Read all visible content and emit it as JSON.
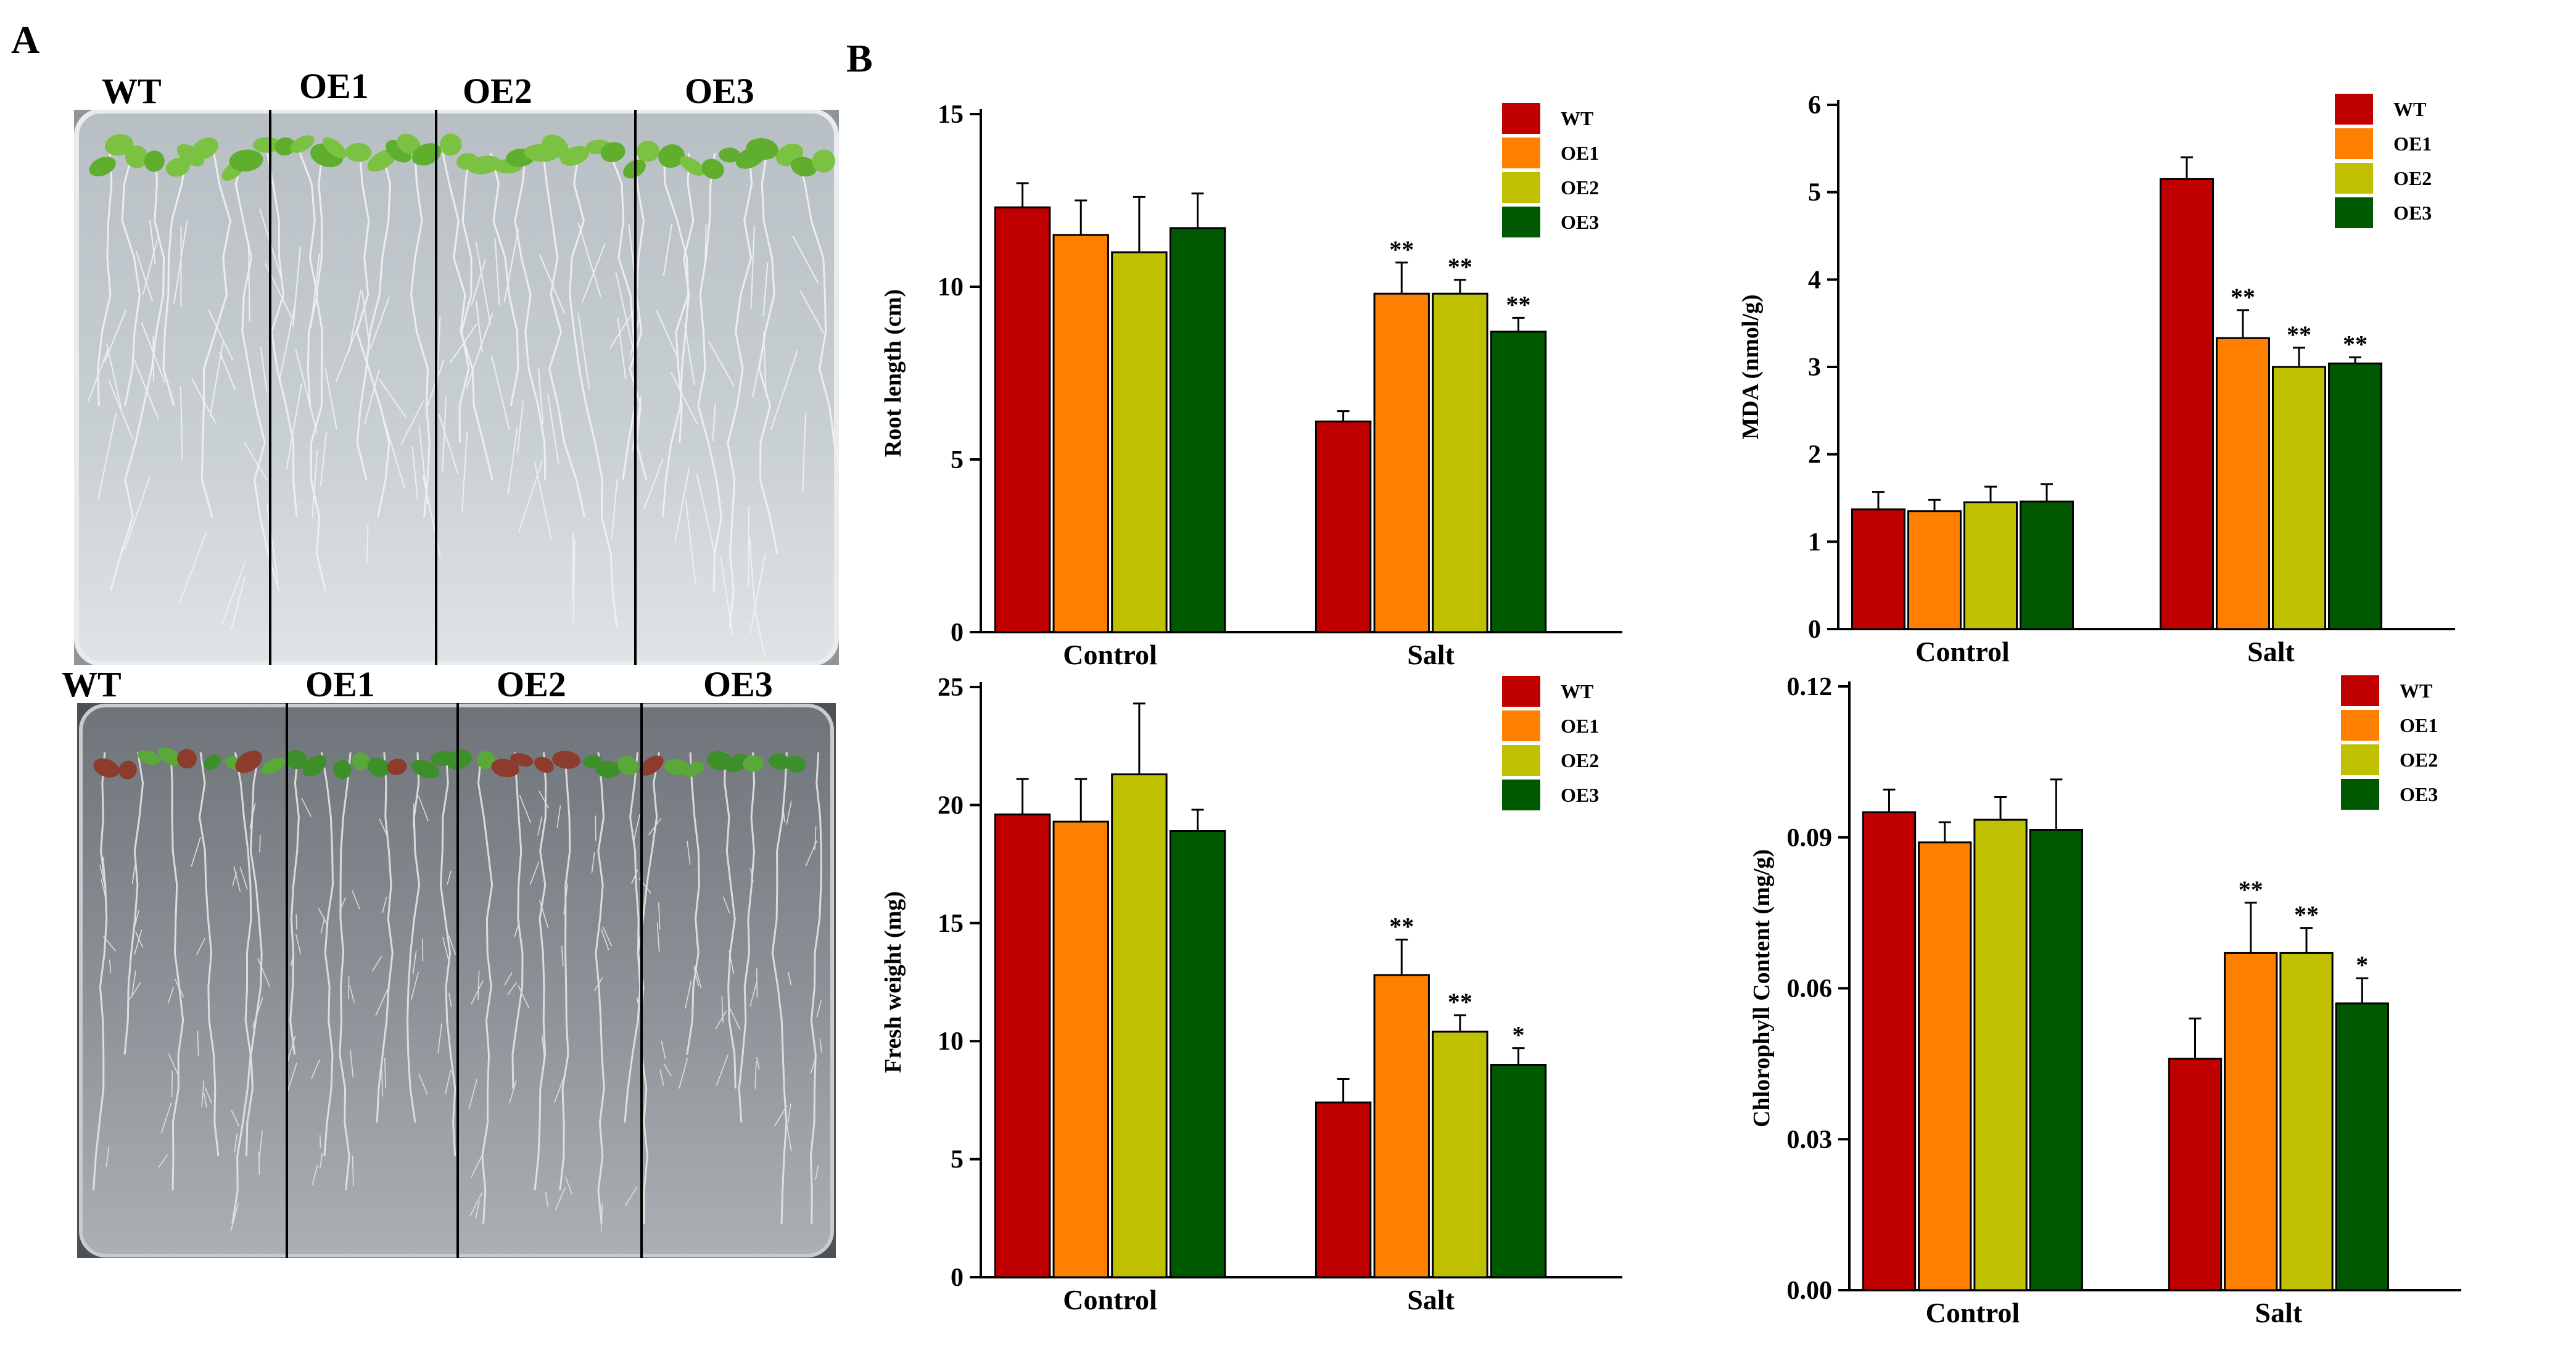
{
  "panel_labels": {
    "a": "A",
    "b": "B"
  },
  "photos": {
    "top": {
      "lanes": [
        "WT",
        "OE1",
        "OE2",
        "OE3"
      ]
    },
    "bottom": {
      "lanes": [
        "WT",
        "OE1",
        "OE2",
        "OE3"
      ]
    }
  },
  "colors": {
    "WT": "#c00000",
    "OE1": "#ff8000",
    "OE2": "#bfc000",
    "OE3": "#005800"
  },
  "chart_data": [
    {
      "id": "root",
      "type": "bar",
      "title": "",
      "xlabel": "",
      "ylabel": "Root length (cm)",
      "categories": [
        "Control",
        "Salt"
      ],
      "ylim": [
        0,
        15
      ],
      "yticks": [
        "0",
        "5",
        "10",
        "15"
      ],
      "ytick_values": [
        0,
        5,
        10,
        15
      ],
      "legend_position": "top-right",
      "series": [
        {
          "name": "WT",
          "values": [
            12.3,
            6.1
          ],
          "errors": [
            0.7,
            0.3
          ],
          "sig": [
            "",
            ""
          ]
        },
        {
          "name": "OE1",
          "values": [
            11.5,
            9.8
          ],
          "errors": [
            1.0,
            0.9
          ],
          "sig": [
            "",
            "**"
          ]
        },
        {
          "name": "OE2",
          "values": [
            11.0,
            9.8
          ],
          "errors": [
            1.6,
            0.4
          ],
          "sig": [
            "",
            "**"
          ]
        },
        {
          "name": "OE3",
          "values": [
            11.7,
            8.7
          ],
          "errors": [
            1.0,
            0.4
          ],
          "sig": [
            "",
            "**"
          ]
        }
      ]
    },
    {
      "id": "mda",
      "type": "bar",
      "title": "",
      "xlabel": "",
      "ylabel": "MDA (nmol/g)",
      "categories": [
        "Control",
        "Salt"
      ],
      "ylim": [
        0,
        6
      ],
      "yticks": [
        "0",
        "1",
        "2",
        "3",
        "4",
        "5",
        "6"
      ],
      "ytick_values": [
        0,
        1,
        2,
        3,
        4,
        5,
        6
      ],
      "legend_position": "top-right",
      "series": [
        {
          "name": "WT",
          "values": [
            1.37,
            5.15
          ],
          "errors": [
            0.2,
            0.25
          ],
          "sig": [
            "",
            ""
          ]
        },
        {
          "name": "OE1",
          "values": [
            1.35,
            3.33
          ],
          "errors": [
            0.13,
            0.32
          ],
          "sig": [
            "",
            "**"
          ]
        },
        {
          "name": "OE2",
          "values": [
            1.45,
            3.0
          ],
          "errors": [
            0.18,
            0.22
          ],
          "sig": [
            "",
            "**"
          ]
        },
        {
          "name": "OE3",
          "values": [
            1.46,
            3.04
          ],
          "errors": [
            0.2,
            0.07
          ],
          "sig": [
            "",
            "**"
          ]
        }
      ]
    },
    {
      "id": "fresh",
      "type": "bar",
      "title": "",
      "xlabel": "",
      "ylabel": "Fresh weight (mg)",
      "categories": [
        "Control",
        "Salt"
      ],
      "ylim": [
        0,
        25
      ],
      "yticks": [
        "0",
        "5",
        "10",
        "15",
        "20",
        "25"
      ],
      "ytick_values": [
        0,
        5,
        10,
        15,
        20,
        25
      ],
      "legend_position": "top-right",
      "series": [
        {
          "name": "WT",
          "values": [
            19.6,
            7.4
          ],
          "errors": [
            1.5,
            1.0
          ],
          "sig": [
            "",
            ""
          ]
        },
        {
          "name": "OE1",
          "values": [
            19.3,
            12.8
          ],
          "errors": [
            1.8,
            1.5
          ],
          "sig": [
            "",
            "**"
          ]
        },
        {
          "name": "OE2",
          "values": [
            21.3,
            10.4
          ],
          "errors": [
            3.0,
            0.7
          ],
          "sig": [
            "",
            "**"
          ]
        },
        {
          "name": "OE3",
          "values": [
            18.9,
            9.0
          ],
          "errors": [
            0.9,
            0.7
          ],
          "sig": [
            "",
            "*"
          ]
        }
      ]
    },
    {
      "id": "chloro",
      "type": "bar",
      "title": "",
      "xlabel": "",
      "ylabel": "Chlorophyll Content (mg/g)",
      "categories": [
        "Control",
        "Salt"
      ],
      "ylim": [
        0,
        0.12
      ],
      "yticks": [
        "0.00",
        "0.03",
        "0.06",
        "0.09",
        "0.12"
      ],
      "ytick_values": [
        0,
        0.03,
        0.06,
        0.09,
        0.12
      ],
      "legend_position": "top-right",
      "series": [
        {
          "name": "WT",
          "values": [
            0.095,
            0.046
          ],
          "errors": [
            0.0045,
            0.008
          ],
          "sig": [
            "",
            ""
          ]
        },
        {
          "name": "OE1",
          "values": [
            0.089,
            0.067
          ],
          "errors": [
            0.004,
            0.01
          ],
          "sig": [
            "",
            "**"
          ]
        },
        {
          "name": "OE2",
          "values": [
            0.0935,
            0.067
          ],
          "errors": [
            0.0045,
            0.005
          ],
          "sig": [
            "",
            "**"
          ]
        },
        {
          "name": "OE3",
          "values": [
            0.0915,
            0.057
          ],
          "errors": [
            0.01,
            0.005
          ],
          "sig": [
            "",
            "*"
          ]
        }
      ]
    }
  ]
}
